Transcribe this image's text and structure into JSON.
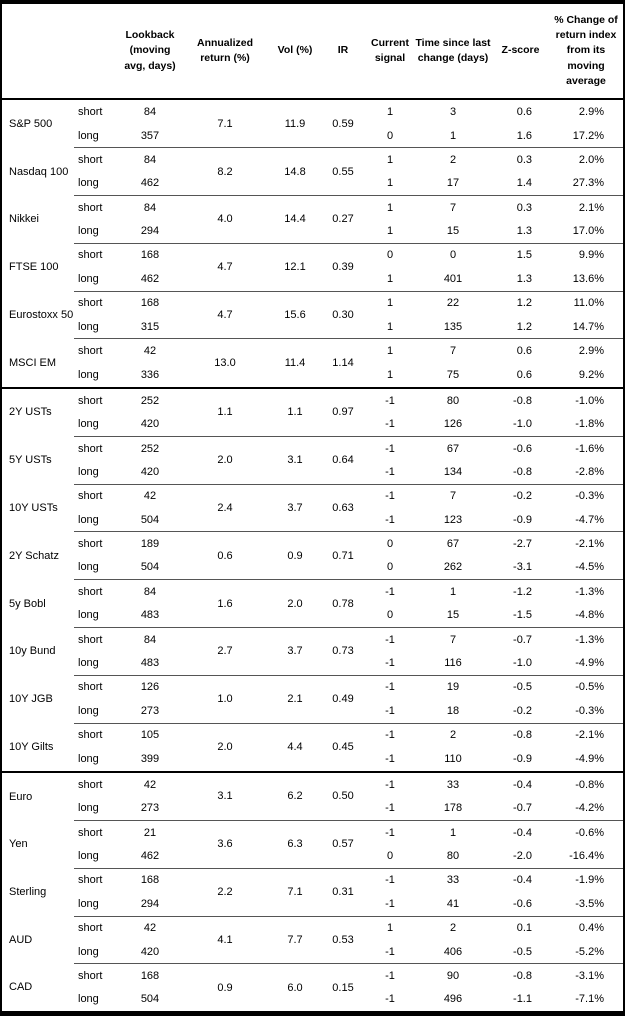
{
  "table": {
    "column_headers": {
      "lookback": "Lookback (moving avg, days)",
      "annualized_return": "Annualized return (%)",
      "vol": "Vol (%)",
      "ir": "IR",
      "current_signal": "Current signal",
      "time_since": "Time since last change (days)",
      "zscore": "Z-score",
      "pct_change": "% Change of return index from its moving average"
    },
    "groups": [
      {
        "name": "S&P 500",
        "annualized_return": "7.1",
        "vol": "11.9",
        "ir": "0.59",
        "section_start": false,
        "rows": [
          {
            "horizon": "short",
            "lookback": "84",
            "signal": "1",
            "time_since": "3",
            "zscore": "0.6",
            "pct_change": "2.9%"
          },
          {
            "horizon": "long",
            "lookback": "357",
            "signal": "0",
            "time_since": "1",
            "zscore": "1.6",
            "pct_change": "17.2%"
          }
        ]
      },
      {
        "name": "Nasdaq 100",
        "annualized_return": "8.2",
        "vol": "14.8",
        "ir": "0.55",
        "section_start": false,
        "rows": [
          {
            "horizon": "short",
            "lookback": "84",
            "signal": "1",
            "time_since": "2",
            "zscore": "0.3",
            "pct_change": "2.0%"
          },
          {
            "horizon": "long",
            "lookback": "462",
            "signal": "1",
            "time_since": "17",
            "zscore": "1.4",
            "pct_change": "27.3%"
          }
        ]
      },
      {
        "name": "Nikkei",
        "annualized_return": "4.0",
        "vol": "14.4",
        "ir": "0.27",
        "section_start": false,
        "rows": [
          {
            "horizon": "short",
            "lookback": "84",
            "signal": "1",
            "time_since": "7",
            "zscore": "0.3",
            "pct_change": "2.1%"
          },
          {
            "horizon": "long",
            "lookback": "294",
            "signal": "1",
            "time_since": "15",
            "zscore": "1.3",
            "pct_change": "17.0%"
          }
        ]
      },
      {
        "name": "FTSE 100",
        "annualized_return": "4.7",
        "vol": "12.1",
        "ir": "0.39",
        "section_start": false,
        "rows": [
          {
            "horizon": "short",
            "lookback": "168",
            "signal": "0",
            "time_since": "0",
            "zscore": "1.5",
            "pct_change": "9.9%"
          },
          {
            "horizon": "long",
            "lookback": "462",
            "signal": "1",
            "time_since": "401",
            "zscore": "1.3",
            "pct_change": "13.6%"
          }
        ]
      },
      {
        "name": "Eurostoxx 50",
        "annualized_return": "4.7",
        "vol": "15.6",
        "ir": "0.30",
        "section_start": false,
        "rows": [
          {
            "horizon": "short",
            "lookback": "168",
            "signal": "1",
            "time_since": "22",
            "zscore": "1.2",
            "pct_change": "11.0%"
          },
          {
            "horizon": "long",
            "lookback": "315",
            "signal": "1",
            "time_since": "135",
            "zscore": "1.2",
            "pct_change": "14.7%"
          }
        ]
      },
      {
        "name": "MSCI EM",
        "annualized_return": "13.0",
        "vol": "11.4",
        "ir": "1.14",
        "section_start": false,
        "rows": [
          {
            "horizon": "short",
            "lookback": "42",
            "signal": "1",
            "time_since": "7",
            "zscore": "0.6",
            "pct_change": "2.9%"
          },
          {
            "horizon": "long",
            "lookback": "336",
            "signal": "1",
            "time_since": "75",
            "zscore": "0.6",
            "pct_change": "9.2%"
          }
        ]
      },
      {
        "name": "2Y USTs",
        "annualized_return": "1.1",
        "vol": "1.1",
        "ir": "0.97",
        "section_start": true,
        "rows": [
          {
            "horizon": "short",
            "lookback": "252",
            "signal": "-1",
            "time_since": "80",
            "zscore": "-0.8",
            "pct_change": "-1.0%"
          },
          {
            "horizon": "long",
            "lookback": "420",
            "signal": "-1",
            "time_since": "126",
            "zscore": "-1.0",
            "pct_change": "-1.8%"
          }
        ]
      },
      {
        "name": "5Y USTs",
        "annualized_return": "2.0",
        "vol": "3.1",
        "ir": "0.64",
        "section_start": false,
        "rows": [
          {
            "horizon": "short",
            "lookback": "252",
            "signal": "-1",
            "time_since": "67",
            "zscore": "-0.6",
            "pct_change": "-1.6%"
          },
          {
            "horizon": "long",
            "lookback": "420",
            "signal": "-1",
            "time_since": "134",
            "zscore": "-0.8",
            "pct_change": "-2.8%"
          }
        ]
      },
      {
        "name": "10Y USTs",
        "annualized_return": "2.4",
        "vol": "3.7",
        "ir": "0.63",
        "section_start": false,
        "rows": [
          {
            "horizon": "short",
            "lookback": "42",
            "signal": "-1",
            "time_since": "7",
            "zscore": "-0.2",
            "pct_change": "-0.3%"
          },
          {
            "horizon": "long",
            "lookback": "504",
            "signal": "-1",
            "time_since": "123",
            "zscore": "-0.9",
            "pct_change": "-4.7%"
          }
        ]
      },
      {
        "name": "2Y Schatz",
        "annualized_return": "0.6",
        "vol": "0.9",
        "ir": "0.71",
        "section_start": false,
        "rows": [
          {
            "horizon": "short",
            "lookback": "189",
            "signal": "0",
            "time_since": "67",
            "zscore": "-2.7",
            "pct_change": "-2.1%"
          },
          {
            "horizon": "long",
            "lookback": "504",
            "signal": "0",
            "time_since": "262",
            "zscore": "-3.1",
            "pct_change": "-4.5%"
          }
        ]
      },
      {
        "name": "5y Bobl",
        "annualized_return": "1.6",
        "vol": "2.0",
        "ir": "0.78",
        "section_start": false,
        "rows": [
          {
            "horizon": "short",
            "lookback": "84",
            "signal": "-1",
            "time_since": "1",
            "zscore": "-1.2",
            "pct_change": "-1.3%"
          },
          {
            "horizon": "long",
            "lookback": "483",
            "signal": "0",
            "time_since": "15",
            "zscore": "-1.5",
            "pct_change": "-4.8%"
          }
        ]
      },
      {
        "name": "10y Bund",
        "annualized_return": "2.7",
        "vol": "3.7",
        "ir": "0.73",
        "section_start": false,
        "rows": [
          {
            "horizon": "short",
            "lookback": "84",
            "signal": "-1",
            "time_since": "7",
            "zscore": "-0.7",
            "pct_change": "-1.3%"
          },
          {
            "horizon": "long",
            "lookback": "483",
            "signal": "-1",
            "time_since": "116",
            "zscore": "-1.0",
            "pct_change": "-4.9%"
          }
        ]
      },
      {
        "name": "10Y JGB",
        "annualized_return": "1.0",
        "vol": "2.1",
        "ir": "0.49",
        "section_start": false,
        "rows": [
          {
            "horizon": "short",
            "lookback": "126",
            "signal": "-1",
            "time_since": "19",
            "zscore": "-0.5",
            "pct_change": "-0.5%"
          },
          {
            "horizon": "long",
            "lookback": "273",
            "signal": "-1",
            "time_since": "18",
            "zscore": "-0.2",
            "pct_change": "-0.3%"
          }
        ]
      },
      {
        "name": "10Y Gilts",
        "annualized_return": "2.0",
        "vol": "4.4",
        "ir": "0.45",
        "section_start": false,
        "rows": [
          {
            "horizon": "short",
            "lookback": "105",
            "signal": "-1",
            "time_since": "2",
            "zscore": "-0.8",
            "pct_change": "-2.1%"
          },
          {
            "horizon": "long",
            "lookback": "399",
            "signal": "-1",
            "time_since": "110",
            "zscore": "-0.9",
            "pct_change": "-4.9%"
          }
        ]
      },
      {
        "name": "Euro",
        "annualized_return": "3.1",
        "vol": "6.2",
        "ir": "0.50",
        "section_start": true,
        "rows": [
          {
            "horizon": "short",
            "lookback": "42",
            "signal": "-1",
            "time_since": "33",
            "zscore": "-0.4",
            "pct_change": "-0.8%"
          },
          {
            "horizon": "long",
            "lookback": "273",
            "signal": "-1",
            "time_since": "178",
            "zscore": "-0.7",
            "pct_change": "-4.2%"
          }
        ]
      },
      {
        "name": "Yen",
        "annualized_return": "3.6",
        "vol": "6.3",
        "ir": "0.57",
        "section_start": false,
        "rows": [
          {
            "horizon": "short",
            "lookback": "21",
            "signal": "-1",
            "time_since": "1",
            "zscore": "-0.4",
            "pct_change": "-0.6%"
          },
          {
            "horizon": "long",
            "lookback": "462",
            "signal": "0",
            "time_since": "80",
            "zscore": "-2.0",
            "pct_change": "-16.4%"
          }
        ]
      },
      {
        "name": "Sterling",
        "annualized_return": "2.2",
        "vol": "7.1",
        "ir": "0.31",
        "section_start": false,
        "rows": [
          {
            "horizon": "short",
            "lookback": "168",
            "signal": "-1",
            "time_since": "33",
            "zscore": "-0.4",
            "pct_change": "-1.9%"
          },
          {
            "horizon": "long",
            "lookback": "294",
            "signal": "-1",
            "time_since": "41",
            "zscore": "-0.6",
            "pct_change": "-3.5%"
          }
        ]
      },
      {
        "name": "AUD",
        "annualized_return": "4.1",
        "vol": "7.7",
        "ir": "0.53",
        "section_start": false,
        "rows": [
          {
            "horizon": "short",
            "lookback": "42",
            "signal": "1",
            "time_since": "2",
            "zscore": "0.1",
            "pct_change": "0.4%"
          },
          {
            "horizon": "long",
            "lookback": "420",
            "signal": "-1",
            "time_since": "406",
            "zscore": "-0.5",
            "pct_change": "-5.2%"
          }
        ]
      },
      {
        "name": "CAD",
        "annualized_return": "0.9",
        "vol": "6.0",
        "ir": "0.15",
        "section_start": false,
        "rows": [
          {
            "horizon": "short",
            "lookback": "168",
            "signal": "-1",
            "time_since": "90",
            "zscore": "-0.8",
            "pct_change": "-3.1%"
          },
          {
            "horizon": "long",
            "lookback": "504",
            "signal": "-1",
            "time_since": "496",
            "zscore": "-1.1",
            "pct_change": "-7.1%"
          }
        ]
      }
    ]
  }
}
